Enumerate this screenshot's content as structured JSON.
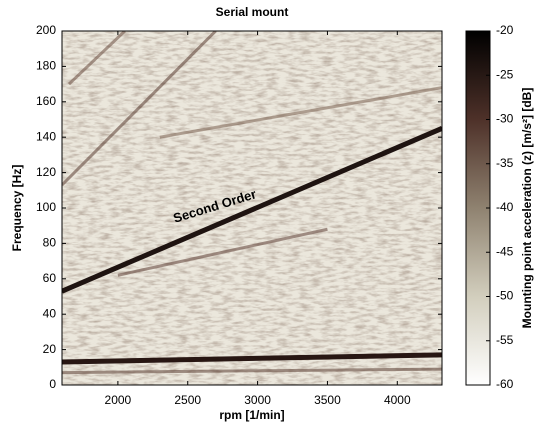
{
  "chart_data": {
    "type": "heatmap",
    "title": "Serial mount",
    "x_label": "rpm [1/min]",
    "y_label": "Frequency [Hz]",
    "colorbar_label": "Mounting point acceleration (z) [m/s²] [dB]",
    "annotation": "Second Order",
    "xlim": [
      1600,
      4320
    ],
    "xticks": [
      2000,
      2500,
      3000,
      3500,
      4000
    ],
    "ylim": [
      0,
      200
    ],
    "yticks": [
      0,
      20,
      40,
      60,
      80,
      100,
      120,
      140,
      160,
      180,
      200
    ],
    "clim": [
      -60,
      -20
    ],
    "cticks": [
      -20,
      -25,
      -30,
      -35,
      -40,
      -45,
      -50,
      -55,
      -60
    ],
    "colormap": [
      "#ffffff",
      "#d2cebd",
      "#8f8270",
      "#4e3129",
      "#000000"
    ],
    "ridges": [
      {
        "x": [
          1600,
          4320
        ],
        "y": [
          53,
          145
        ],
        "color": "#140806"
      },
      {
        "x": [
          1600,
          4320
        ],
        "y": [
          13,
          17
        ],
        "color": "#1e0c08"
      },
      {
        "x": [
          1600,
          4320
        ],
        "y": [
          7,
          9
        ],
        "color": "#5a3c32"
      },
      {
        "x": [
          1600,
          2700
        ],
        "y": [
          113,
          200
        ],
        "color": "#5a3c32"
      },
      {
        "x": [
          1650,
          2050
        ],
        "y": [
          170,
          200
        ],
        "color": "#6a4c40"
      },
      {
        "x": [
          2000,
          3500
        ],
        "y": [
          62,
          88
        ],
        "color": "#5e4036"
      },
      {
        "x": [
          2300,
          4320
        ],
        "y": [
          140,
          168
        ],
        "color": "#7a6050"
      }
    ]
  }
}
